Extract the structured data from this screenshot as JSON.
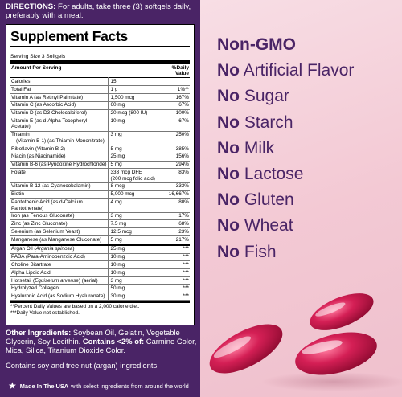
{
  "directions": {
    "label": "DIRECTIONS:",
    "text": " For adults, take three (3) softgels daily, preferably with a meal."
  },
  "supplement_facts": {
    "title": "Supplement Facts",
    "serving": "Serving Size 3 Softgels",
    "headers": {
      "amount_per_serving": "Amount Per Serving",
      "daily_value": "%Daily Value"
    },
    "rows": [
      {
        "name": "Calories",
        "sub": "",
        "amount": "15",
        "dv": ""
      },
      {
        "name": "Total Fat",
        "sub": "",
        "amount": "1 g",
        "dv": "1%**"
      },
      {
        "name": "Vitamin A (as Retinyl Palmitate)",
        "sub": "",
        "amount": "1,500 mcg",
        "dv": "167%"
      },
      {
        "name": "Vitamin C (as Ascorbic Acid)",
        "sub": "",
        "amount": "60 mg",
        "dv": "67%"
      },
      {
        "name": "Vitamin D (as D3 Cholecalciferol)",
        "sub": "",
        "amount": "20 mcg (800 IU)",
        "dv": "100%"
      },
      {
        "name": "Vitamin E (as d-Alpha Tocopheryl Acetate)",
        "sub": "",
        "amount": "10 mg",
        "dv": "67%"
      },
      {
        "name": "Thiamin",
        "sub": "(Vitamin B-1) (as Thiamin Mononitrate)",
        "amount": "3 mg",
        "dv": "250%"
      },
      {
        "name": "Riboflavin (Vitamin B-2)",
        "sub": "",
        "amount": "5 mg",
        "dv": "385%"
      },
      {
        "name": "Niacin (as Niacinamide)",
        "sub": "",
        "amount": "25 mg",
        "dv": "156%"
      },
      {
        "name": "Vitamin B-6 (as Pyridoxine Hydrochloride)",
        "sub": "",
        "amount": "5 mg",
        "dv": "294%"
      },
      {
        "name": "Folate",
        "sub": "",
        "amount": "333 mcg DFE",
        "amount2": "(200 mcg folic acid)",
        "dv": "83%"
      },
      {
        "name": "Vitamin B-12 (as Cyanocobalamin)",
        "sub": "",
        "amount": "8 mcg",
        "dv": "333%"
      },
      {
        "name": "Biotin",
        "sub": "",
        "amount": "5,000 mcg",
        "dv": "16,667%"
      },
      {
        "name": "Pantothenic Acid (as d-Calcium Pantothenate)",
        "sub": "",
        "amount": "4 mg",
        "dv": "80%"
      },
      {
        "name": "Iron (as Ferrous Gluconate)",
        "sub": "",
        "amount": "3 mg",
        "dv": "17%"
      },
      {
        "name": "Zinc (as Zinc Gluconate)",
        "sub": "",
        "amount": "7.5 mg",
        "dv": "68%"
      },
      {
        "name": "Selenium (as Selenium Yeast)",
        "sub": "",
        "amount": "12.5 mcg",
        "dv": "23%"
      },
      {
        "name": "Manganese (as Manganese Gluconate)",
        "sub": "",
        "amount": "5 mg",
        "dv": "217%"
      }
    ],
    "other_rows": [
      {
        "name": "Argan Oil (",
        "italic": "Argania spinosa",
        "tail": ")",
        "amount": "25 mg",
        "dv": "***"
      },
      {
        "name": "PABA (Para-Aminobenzoic Acid)",
        "italic": "",
        "tail": "",
        "amount": "10 mg",
        "dv": "***"
      },
      {
        "name": "Choline Bitartrate",
        "italic": "",
        "tail": "",
        "amount": "10 mg",
        "dv": "***"
      },
      {
        "name": "Alpha Lipoic Acid",
        "italic": "",
        "tail": "",
        "amount": "10 mg",
        "dv": "***"
      },
      {
        "name": "Horsetail (",
        "italic": "Equisetum arvense",
        "tail": ") (aerial)",
        "amount": "3 mg",
        "dv": "***"
      },
      {
        "name": "Hydrolyzed Collagen",
        "italic": "",
        "tail": "",
        "amount": "50 mg",
        "dv": "***"
      },
      {
        "name": "Hyaluronic Acid (as Sodium Hyaluronate)",
        "italic": "",
        "tail": "",
        "amount": "30 mg",
        "dv": "***"
      }
    ],
    "footnote_1": "**Percent Daily Values are based on a 2,000 calorie diet.",
    "footnote_2": "***Daily Value not established."
  },
  "other_ingredients": {
    "label": "Other Ingredients:",
    "text": " Soybean Oil, Gelatin, Vegetable Glycerin, Soy Lecithin. ",
    "contains_label": "Contains <2% of:",
    "contains_text": " Carmine Color, Mica, Silica, Titanium Dioxide Color."
  },
  "allergen": "Contains soy and tree nut (argan) ingredients.",
  "made_in": {
    "icon": "star-icon",
    "bold": "Made In The USA",
    "text": "with select ingredients from around the world"
  },
  "claims": [
    {
      "no": "Non-GMO",
      "rest": ""
    },
    {
      "no": "No",
      "rest": " Artificial Flavor"
    },
    {
      "no": "No",
      "rest": " Sugar"
    },
    {
      "no": "No",
      "rest": " Starch"
    },
    {
      "no": "No",
      "rest": " Milk"
    },
    {
      "no": "No",
      "rest": " Lactose"
    },
    {
      "no": "No",
      "rest": " Gluten"
    },
    {
      "no": "No",
      "rest": " Wheat"
    },
    {
      "no": "No",
      "rest": " Fish"
    }
  ],
  "colors": {
    "panel": "#4a2466",
    "claim_text": "#4a2466",
    "background": "#f5d3dc",
    "softgel": "#c81a4a"
  }
}
